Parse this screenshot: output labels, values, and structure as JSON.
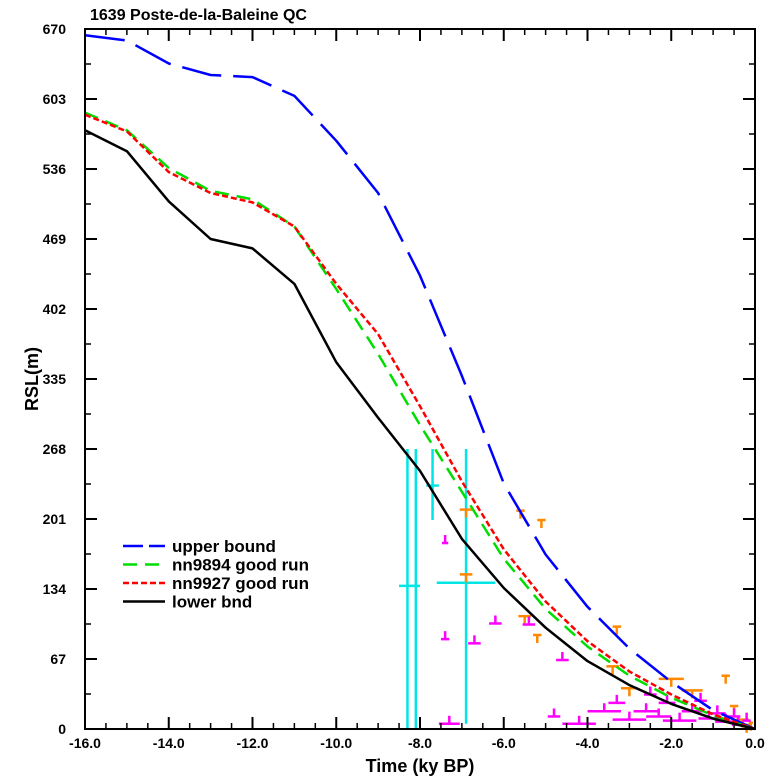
{
  "chart_data": {
    "type": "line",
    "title": "1639 Poste-de-la-Baleine QC",
    "xlabel": "Time (ky BP)",
    "ylabel": "RSL(m)",
    "xlim": [
      -16.0,
      0.0
    ],
    "ylim": [
      0,
      670
    ],
    "x_ticks": [
      -16.0,
      -14.0,
      -12.0,
      -10.0,
      -8.0,
      -6.0,
      -4.0,
      -2.0,
      0.0
    ],
    "x_tick_labels": [
      "-16.0",
      "-14.0",
      "-12.0",
      "-10.0",
      "-8.0",
      "-6.0",
      "-4.0",
      "-2.0",
      "0.0"
    ],
    "y_ticks": [
      0,
      67,
      134,
      201,
      268,
      335,
      402,
      469,
      536,
      603,
      670
    ],
    "y_tick_labels": [
      "0",
      "67",
      "134",
      "201",
      "268",
      "335",
      "402",
      "469",
      "536",
      "603",
      "670"
    ],
    "legend_position": "bottom-left",
    "series": [
      {
        "name": "upper bound",
        "color": "#0000ff",
        "dash": "long-dash",
        "x": [
          -16,
          -15,
          -14,
          -13,
          -12,
          -11,
          -10,
          -9,
          -8,
          -7,
          -6,
          -5,
          -4,
          -3,
          -2,
          -1,
          0
        ],
        "y": [
          664,
          659,
          637,
          626,
          624,
          606,
          563,
          513,
          434,
          338,
          235,
          167,
          117,
          77,
          45,
          18,
          0
        ]
      },
      {
        "name": "nn9894 good run",
        "color": "#00dd00",
        "dash": "dash",
        "x": [
          -16,
          -15,
          -14,
          -13,
          -12,
          -11,
          -10,
          -9,
          -8,
          -7,
          -6,
          -5,
          -4,
          -3,
          -2,
          -1,
          0
        ],
        "y": [
          590,
          573,
          537,
          515,
          507,
          481,
          421,
          359,
          291,
          227,
          163,
          115,
          79,
          51,
          30,
          13,
          0
        ]
      },
      {
        "name": "nn9927 good run",
        "color": "#ff0000",
        "dash": "short-dash",
        "x": [
          -16,
          -15,
          -14,
          -13,
          -12,
          -11,
          -10,
          -9,
          -8,
          -7,
          -6,
          -5,
          -4,
          -3,
          -2,
          -1,
          0
        ],
        "y": [
          588,
          572,
          533,
          513,
          504,
          481,
          426,
          378,
          309,
          237,
          172,
          122,
          84,
          55,
          33,
          14,
          0
        ]
      },
      {
        "name": "lower bnd",
        "color": "#000000",
        "dash": "solid",
        "x": [
          -16,
          -15,
          -14,
          -13,
          -12,
          -11,
          -10,
          -9,
          -8,
          -7,
          -6,
          -5,
          -4,
          -3,
          -2,
          -1,
          0
        ],
        "y": [
          573,
          553,
          505,
          469,
          460,
          426,
          351,
          298,
          247,
          182,
          135,
          97,
          65,
          42,
          24,
          10,
          0
        ]
      }
    ],
    "data_points": {
      "cyan": {
        "color": "#00e5e5",
        "points": [
          {
            "x": -8.3,
            "y": 137,
            "xerr": 0.2,
            "ylo": 0,
            "yhi": 268
          },
          {
            "x": -8.1,
            "y": 137,
            "xerr": 0.1,
            "ylo": 0,
            "yhi": 268
          },
          {
            "x": -7.7,
            "y": 233,
            "xerr": 0.15,
            "ylo": 200,
            "yhi": 268
          },
          {
            "x": -6.9,
            "y": 140,
            "xerr": 0.7,
            "ylo": 5,
            "yhi": 268
          }
        ]
      },
      "orange": {
        "color": "#ff8800",
        "points": [
          {
            "x": -6.9,
            "y": 210,
            "w": 0.3
          },
          {
            "x": -5.6,
            "y": 209,
            "w": 0.2
          },
          {
            "x": -5.1,
            "y": 200,
            "w": 0.2
          },
          {
            "x": -6.9,
            "y": 148,
            "w": 0.3
          },
          {
            "x": -5.5,
            "y": 108,
            "w": 0.3
          },
          {
            "x": -5.2,
            "y": 90,
            "w": 0.2
          },
          {
            "x": -3.3,
            "y": 98,
            "w": 0.2
          },
          {
            "x": -3.4,
            "y": 60,
            "w": 0.3
          },
          {
            "x": -3.0,
            "y": 39,
            "w": 0.4
          },
          {
            "x": -2.0,
            "y": 48,
            "w": 0.6
          },
          {
            "x": -1.5,
            "y": 37,
            "w": 0.5
          },
          {
            "x": -0.7,
            "y": 51,
            "w": 0.2
          },
          {
            "x": -0.5,
            "y": 22,
            "w": 0.2
          },
          {
            "x": -0.3,
            "y": 9,
            "w": 0.3
          },
          {
            "x": -0.2,
            "y": 4,
            "w": 0.2
          },
          {
            "x": -0.1,
            "y": 6,
            "w": 0.1
          }
        ]
      },
      "magenta": {
        "color": "#ff00ff",
        "points": [
          {
            "x": -7.4,
            "y": 178,
            "w": 0.15
          },
          {
            "x": -7.3,
            "y": 5,
            "w": 0.5
          },
          {
            "x": -7.4,
            "y": 86,
            "w": 0.2
          },
          {
            "x": -6.7,
            "y": 82,
            "w": 0.3
          },
          {
            "x": -6.2,
            "y": 101,
            "w": 0.3
          },
          {
            "x": -5.4,
            "y": 100,
            "w": 0.3
          },
          {
            "x": -4.6,
            "y": 66,
            "w": 0.3
          },
          {
            "x": -4.8,
            "y": 12,
            "w": 0.3
          },
          {
            "x": -4.2,
            "y": 5,
            "w": 0.8
          },
          {
            "x": -3.6,
            "y": 17,
            "w": 0.8
          },
          {
            "x": -3.3,
            "y": 25,
            "w": 0.4
          },
          {
            "x": -3.0,
            "y": 9,
            "w": 0.8
          },
          {
            "x": -2.6,
            "y": 17,
            "w": 0.6
          },
          {
            "x": -2.5,
            "y": 33,
            "w": 0.3
          },
          {
            "x": -2.3,
            "y": 12,
            "w": 0.6
          },
          {
            "x": -2.1,
            "y": 25,
            "w": 0.4
          },
          {
            "x": -1.8,
            "y": 8,
            "w": 0.8
          },
          {
            "x": -1.5,
            "y": 17,
            "w": 0.5
          },
          {
            "x": -1.3,
            "y": 27,
            "w": 0.3
          },
          {
            "x": -1.1,
            "y": 10,
            "w": 0.5
          },
          {
            "x": -0.9,
            "y": 15,
            "w": 0.4
          },
          {
            "x": -0.7,
            "y": 7,
            "w": 0.5
          },
          {
            "x": -0.5,
            "y": 12,
            "w": 0.3
          },
          {
            "x": -0.4,
            "y": 4,
            "w": 0.3
          },
          {
            "x": -0.2,
            "y": 8,
            "w": 0.2
          }
        ]
      }
    }
  }
}
